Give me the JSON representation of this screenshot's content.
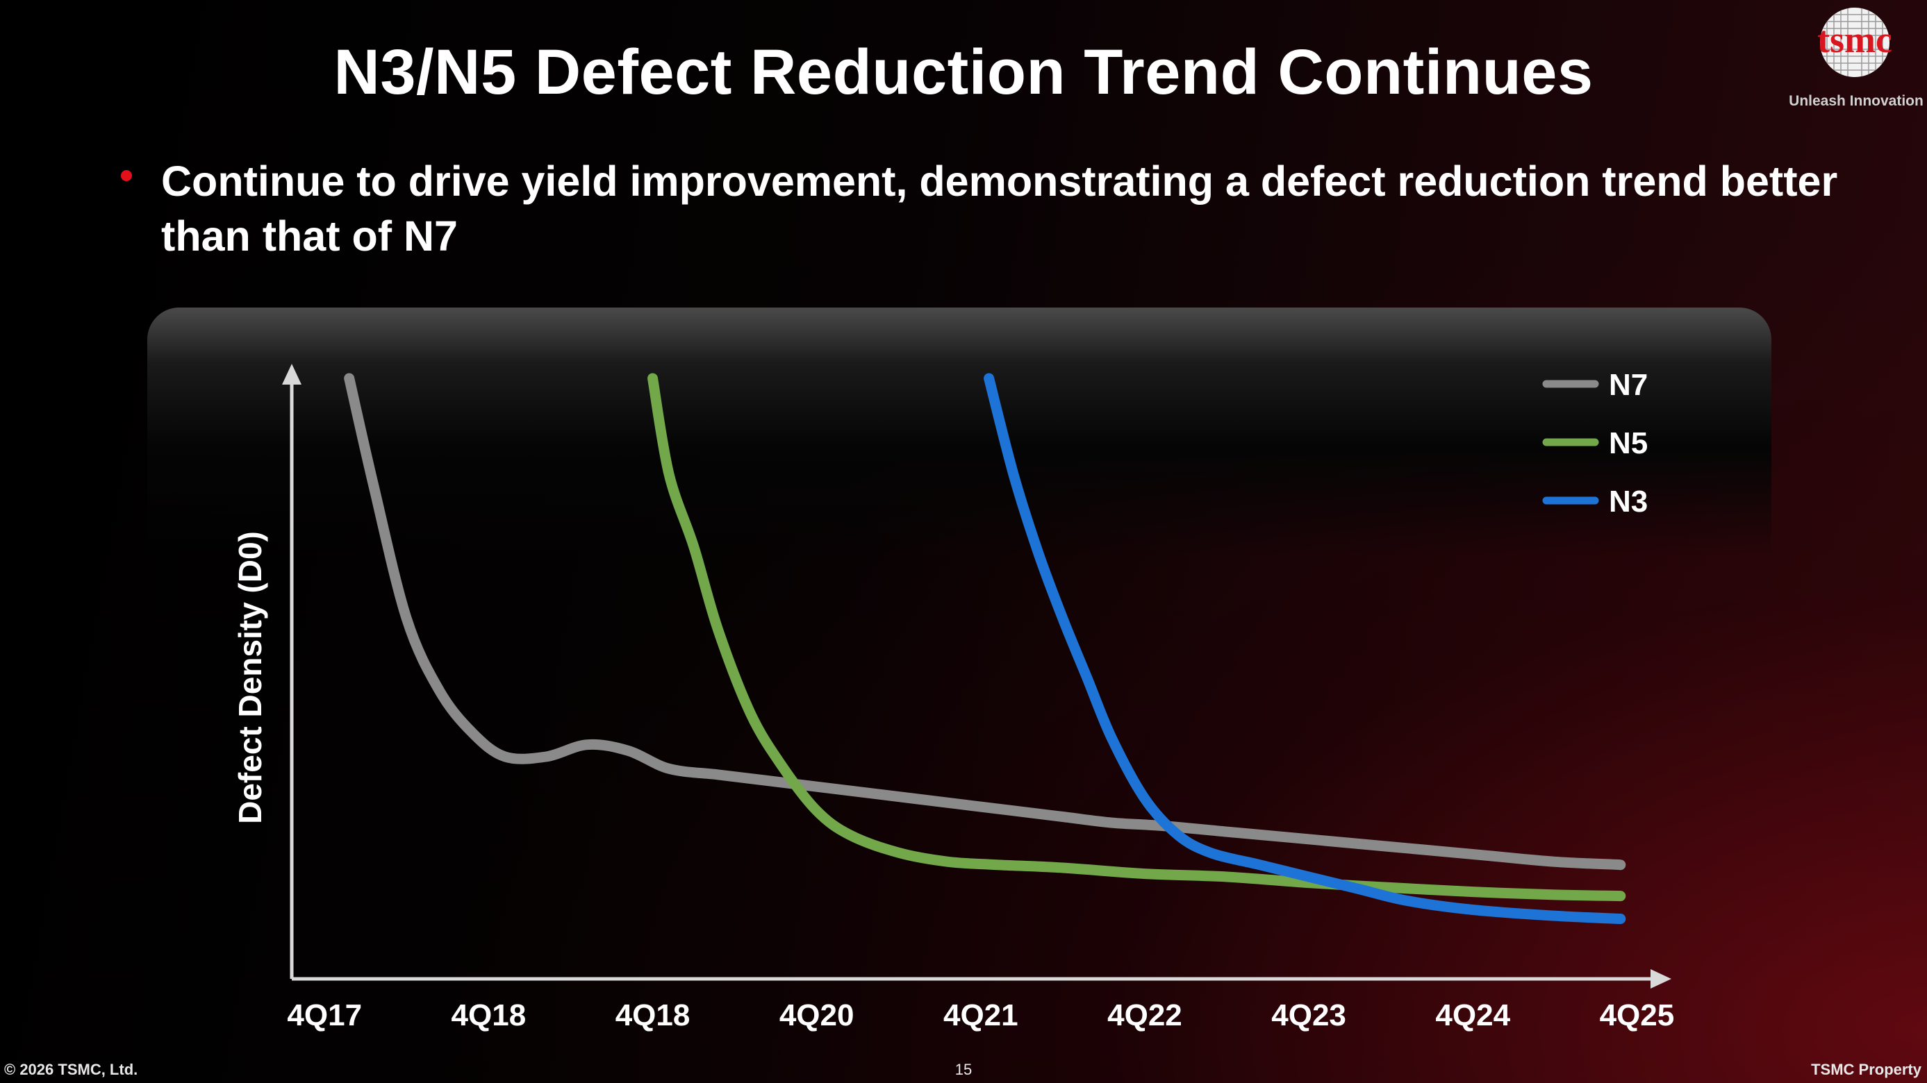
{
  "slide": {
    "title": "N3/N5 Defect Reduction Trend Continues",
    "bullet": "Continue to drive yield improvement, demonstrating a defect reduction trend better than that of N7",
    "logo_text": "tsmc",
    "logo_tagline": "Unleash Innovation",
    "bullet_color": "#e3101b"
  },
  "footer": {
    "copyright": "© 2026 TSMC, Ltd.",
    "page_number": "15",
    "property": "TSMC Property"
  },
  "chart_data": {
    "type": "line",
    "title": "",
    "xlabel": "",
    "ylabel": "Defect Density (D0)",
    "categories": [
      "4Q17",
      "4Q18",
      "4Q18",
      "4Q20",
      "4Q21",
      "4Q22",
      "4Q23",
      "4Q24",
      "4Q25"
    ],
    "xlim": [
      -0.2,
      8.1
    ],
    "ylim": [
      0,
      100
    ],
    "y_ticks_shown": false,
    "grid": false,
    "legend_position": "top-right",
    "series": [
      {
        "name": "N7",
        "color": "#8a8a8a",
        "points": [
          [
            0.15,
            100
          ],
          [
            0.3,
            82
          ],
          [
            0.5,
            60
          ],
          [
            0.7,
            48
          ],
          [
            0.9,
            41
          ],
          [
            1.1,
            37
          ],
          [
            1.35,
            37
          ],
          [
            1.6,
            39
          ],
          [
            1.85,
            38
          ],
          [
            2.1,
            35
          ],
          [
            2.4,
            34
          ],
          [
            2.7,
            33
          ],
          [
            3.0,
            32
          ],
          [
            3.3,
            31
          ],
          [
            3.6,
            30
          ],
          [
            3.9,
            29
          ],
          [
            4.2,
            28
          ],
          [
            4.5,
            27
          ],
          [
            4.8,
            26
          ],
          [
            5.1,
            25.5
          ],
          [
            5.5,
            24.5
          ],
          [
            5.9,
            23.5
          ],
          [
            6.3,
            22.5
          ],
          [
            6.7,
            21.5
          ],
          [
            7.1,
            20.5
          ],
          [
            7.5,
            19.5
          ],
          [
            7.9,
            19
          ]
        ]
      },
      {
        "name": "N5",
        "color": "#72a74a",
        "points": [
          [
            2.0,
            100
          ],
          [
            2.1,
            84
          ],
          [
            2.25,
            72
          ],
          [
            2.4,
            58
          ],
          [
            2.6,
            44
          ],
          [
            2.8,
            35
          ],
          [
            3.0,
            28
          ],
          [
            3.2,
            24
          ],
          [
            3.5,
            21
          ],
          [
            3.8,
            19.5
          ],
          [
            4.1,
            19
          ],
          [
            4.5,
            18.5
          ],
          [
            5.0,
            17.5
          ],
          [
            5.5,
            17
          ],
          [
            6.0,
            16
          ],
          [
            6.5,
            15.2
          ],
          [
            7.0,
            14.5
          ],
          [
            7.5,
            14
          ],
          [
            7.9,
            13.8
          ]
        ]
      },
      {
        "name": "N3",
        "color": "#1e73d6",
        "points": [
          [
            4.05,
            100
          ],
          [
            4.2,
            84
          ],
          [
            4.35,
            71
          ],
          [
            4.5,
            60
          ],
          [
            4.65,
            50
          ],
          [
            4.8,
            40
          ],
          [
            5.0,
            30
          ],
          [
            5.2,
            24
          ],
          [
            5.4,
            21
          ],
          [
            5.7,
            19
          ],
          [
            6.0,
            17
          ],
          [
            6.3,
            15
          ],
          [
            6.6,
            13
          ],
          [
            7.0,
            11.5
          ],
          [
            7.5,
            10.5
          ],
          [
            7.9,
            10
          ]
        ]
      }
    ]
  }
}
